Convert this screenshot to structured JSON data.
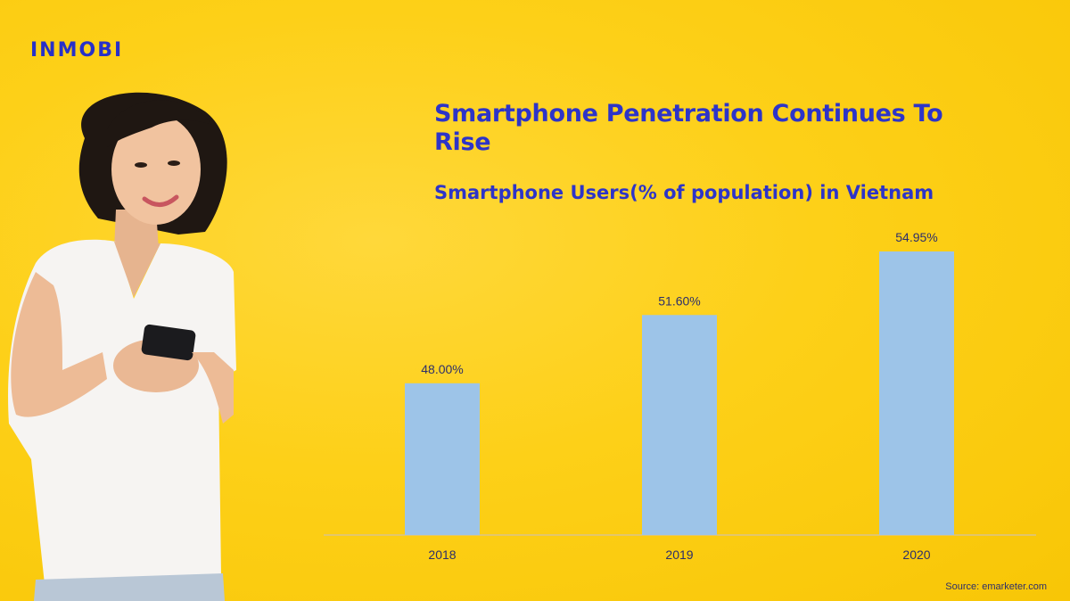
{
  "brand": {
    "logo_text": "INMOBI"
  },
  "colors": {
    "background": "#fdd018",
    "accent": "#2d34c8",
    "bar": "#9dc4e8"
  },
  "title": "Smartphone Penetration Continues To Rise",
  "subtitle": "Smartphone Users(% of population) in Vietnam",
  "source": "Source: emarketer.com",
  "chart_data": {
    "type": "bar",
    "categories": [
      "2018",
      "2019",
      "2020"
    ],
    "values": [
      48.0,
      51.6,
      54.95
    ],
    "data_labels": [
      "48.00%",
      "51.60%",
      "54.95%"
    ],
    "ylim": [
      40,
      56
    ],
    "grid": false,
    "legend": "none"
  }
}
